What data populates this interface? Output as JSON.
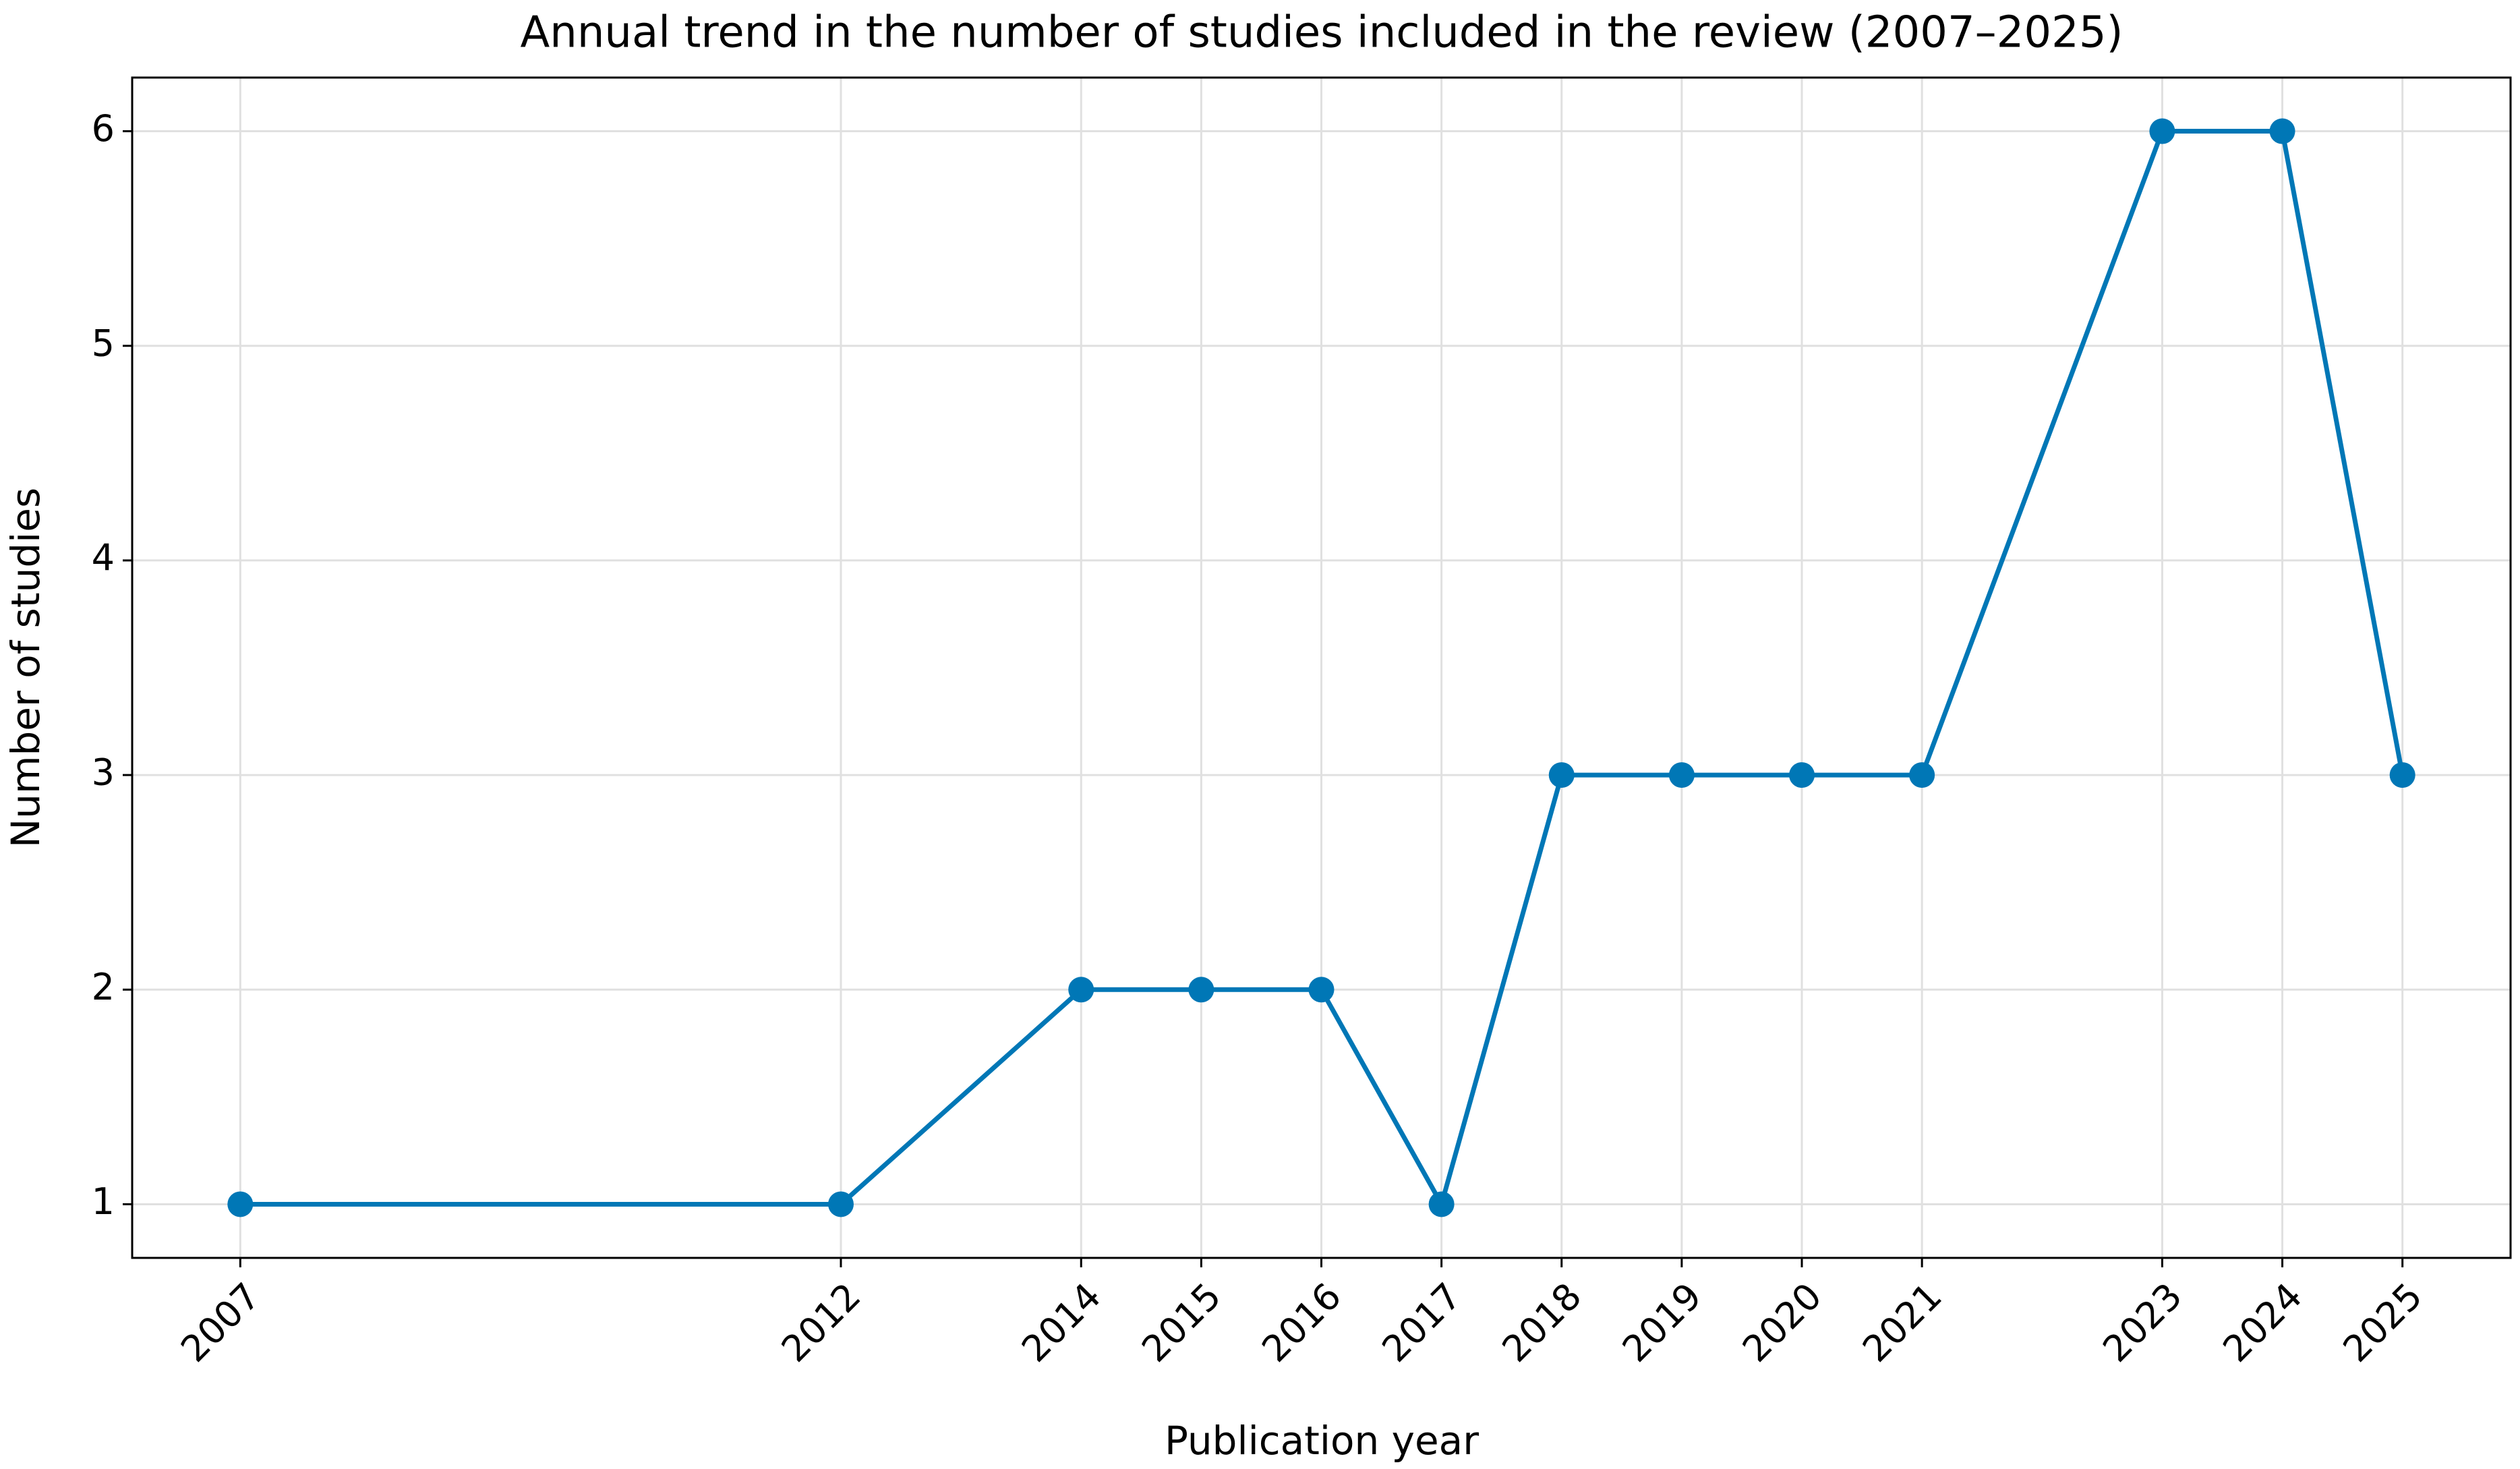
{
  "chart_data": {
    "type": "line",
    "title": "Annual trend in the number of studies included in the review (2007–2025)",
    "x_label": "Publication year",
    "y_label": "Number of studies",
    "x": [
      2007,
      2012,
      2014,
      2015,
      2016,
      2017,
      2018,
      2019,
      2020,
      2021,
      2023,
      2024,
      2025
    ],
    "values": [
      1,
      1,
      2,
      2,
      2,
      1,
      3,
      3,
      3,
      3,
      6,
      6,
      3
    ],
    "color": "#0077b6",
    "marker": true,
    "xlim": [
      2006.1,
      2025.9
    ],
    "xticks": [
      2007,
      2012,
      2014,
      2015,
      2016,
      2017,
      2018,
      2019,
      2020,
      2021,
      2023,
      2024,
      2025
    ],
    "ylim": [
      0.75,
      6.25
    ],
    "yticks": [
      1,
      2,
      3,
      4,
      5,
      6
    ],
    "grid": true
  }
}
